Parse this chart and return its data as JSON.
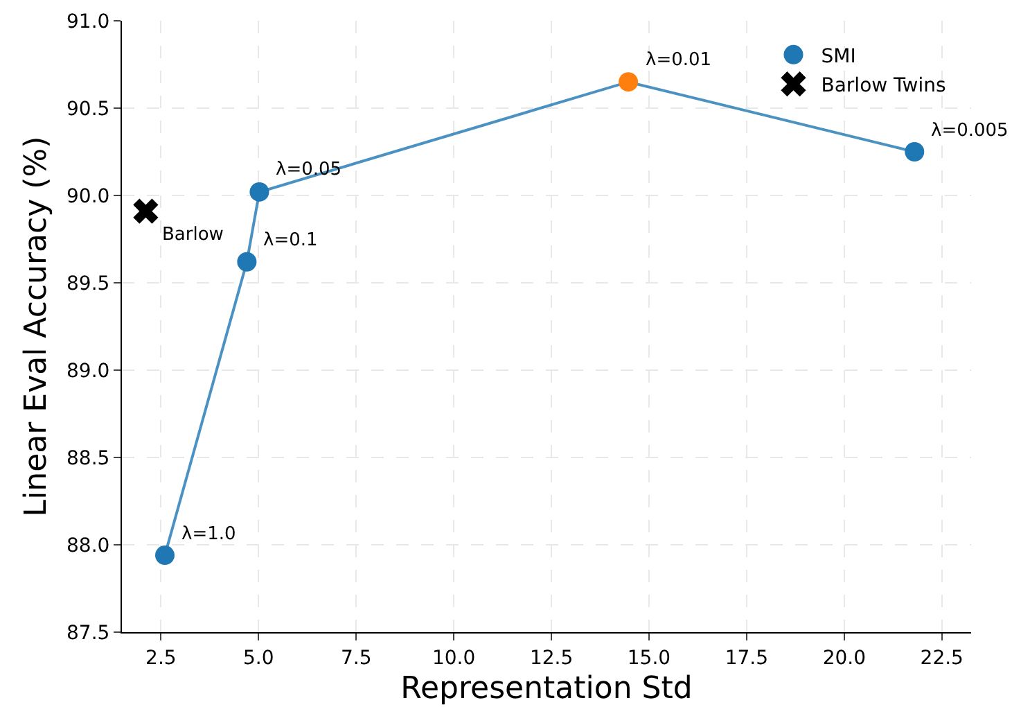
{
  "chart_data": {
    "type": "line",
    "xlabel": "Representation Std",
    "ylabel": "Linear Eval Accuracy (%)",
    "xlim": [
      1.5,
      23.25
    ],
    "xticks": [
      {
        "value": 2.5,
        "label": "2.5"
      },
      {
        "value": 5,
        "label": "5.0"
      },
      {
        "value": 7.5,
        "label": "7.5"
      },
      {
        "value": 10,
        "label": "10.0"
      },
      {
        "value": 12.5,
        "label": "12.5"
      },
      {
        "value": 15,
        "label": "15.0"
      },
      {
        "value": 17.5,
        "label": "17.5"
      },
      {
        "value": 20,
        "label": "20.0"
      },
      {
        "value": 22.5,
        "label": "22.5"
      }
    ],
    "ylim": [
      87.5,
      91
    ],
    "yticks": [
      {
        "value": 87.5,
        "label": "87.5"
      },
      {
        "value": 88,
        "label": "88.0"
      },
      {
        "value": 88.5,
        "label": "88.5"
      },
      {
        "value": 89,
        "label": "89.0"
      },
      {
        "value": 89.5,
        "label": "89.5"
      },
      {
        "value": 90,
        "label": "90.0"
      },
      {
        "value": 90.5,
        "label": "90.5"
      },
      {
        "value": 91,
        "label": "91.0"
      }
    ],
    "grid": true,
    "legend": "top right",
    "marker": "circle",
    "line_style": "solid",
    "series": [
      {
        "name": "SMI",
        "color": "#1f77b4",
        "colors": [
          "#1f77b4",
          "#1f77b4",
          "#1f77b4",
          "#ff7f0e",
          "#1f77b4"
        ],
        "x": [
          2.6,
          4.7,
          5.02,
          14.47,
          21.8
        ],
        "values": [
          87.94,
          89.62,
          90.02,
          90.65,
          90.25
        ]
      },
      {
        "name": "Barlow Twins",
        "type": "scatter",
        "marker": "cross",
        "color": "#000000",
        "x": [
          2.11
        ],
        "values": [
          89.91
        ]
      }
    ],
    "annotations": [
      {
        "text": "λ=1.0",
        "x": 2.6,
        "y": 87.94
      },
      {
        "text": "λ=0.1",
        "x": 4.7,
        "y": 89.62
      },
      {
        "text": "λ=0.05",
        "x": 5.02,
        "y": 90.02
      },
      {
        "text": "λ=0.01",
        "x": 14.47,
        "y": 90.65
      },
      {
        "text": "λ=0.005",
        "x": 21.8,
        "y": 90.25
      },
      {
        "text": "Barlow",
        "x": 2.11,
        "y": 89.91
      }
    ]
  }
}
